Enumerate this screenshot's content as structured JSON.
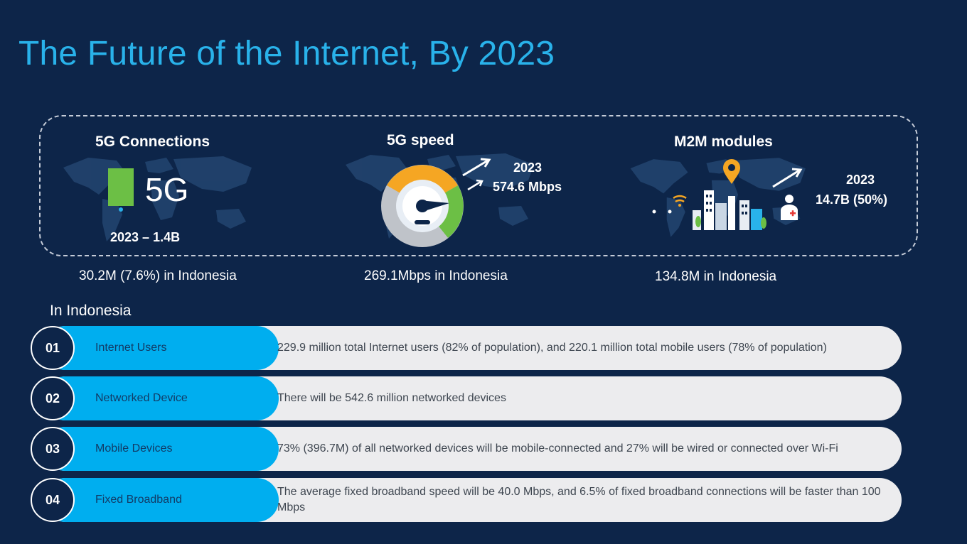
{
  "title": "The Future of the Internet, By 2023",
  "colors": {
    "background": "#0d2549",
    "accent": "#29b2ea",
    "cyan": "#00aeef",
    "pill": "#ececee",
    "green": "#6cbf45",
    "orange": "#f5a623"
  },
  "stats": [
    {
      "heading": "5G Connections",
      "badge": "5G",
      "caption": "2023 – 1.4B",
      "indonesia": "30.2M (7.6%) in Indonesia"
    },
    {
      "heading": "5G speed",
      "year": "2023",
      "value": "574.6 Mbps",
      "indonesia": "269.1Mbps in Indonesia"
    },
    {
      "heading": "M2M modules",
      "year": "2023",
      "value": "14.7B (50%)",
      "indonesia": "134.8M in Indonesia"
    }
  ],
  "section_title": "In Indonesia",
  "items": [
    {
      "num": "01",
      "label": "Internet Users",
      "text": "229.9 million total Internet users (82% of population), and 220.1 million total mobile users (78% of population)"
    },
    {
      "num": "02",
      "label": "Networked Device",
      "text": "There will be 542.6 million networked devices"
    },
    {
      "num": "03",
      "label": "Mobile Devices",
      "text": "73% (396.7M) of all networked devices will be mobile-connected and 27% will be wired or connected over Wi-Fi"
    },
    {
      "num": "04",
      "label": "Fixed Broadband",
      "text": "The average fixed broadband speed will be 40.0 Mbps, and 6.5% of fixed broadband connections will be faster than 100 Mbps"
    }
  ]
}
